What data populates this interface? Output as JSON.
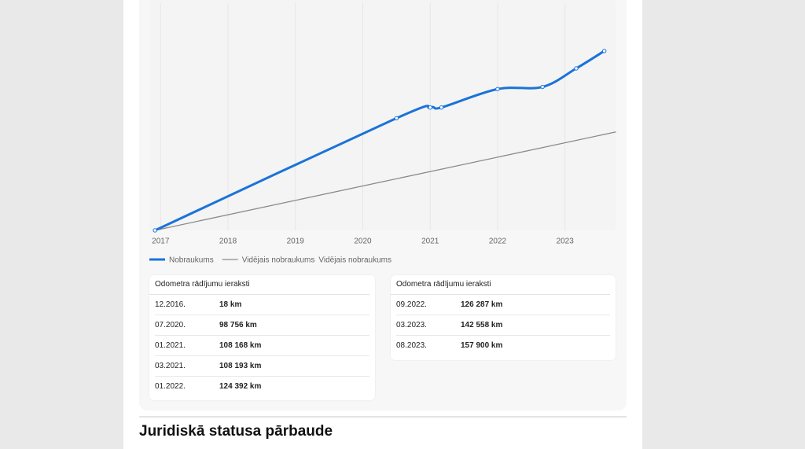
{
  "chart_data": {
    "type": "line",
    "xlim": [
      "2016-11",
      "2023-10"
    ],
    "ylim": [
      0,
      200000
    ],
    "xticks": [
      {
        "value": "2017-01",
        "label": "2017"
      },
      {
        "value": "2018-01",
        "label": "2018"
      },
      {
        "value": "2019-01",
        "label": "2019"
      },
      {
        "value": "2020-01",
        "label": "2020"
      },
      {
        "value": "2021-01",
        "label": "2021"
      },
      {
        "value": "2022-01",
        "label": "2022"
      },
      {
        "value": "2023-01",
        "label": "2023"
      }
    ],
    "grid": true,
    "series": [
      {
        "name": "Nobraukums",
        "color": "#1a73d9",
        "x": [
          "2016-12",
          "2020-07",
          "2021-01",
          "2021-03",
          "2022-01",
          "2022-09",
          "2023-03",
          "2023-08"
        ],
        "values": [
          18,
          98756,
          108168,
          108193,
          124392,
          126287,
          142558,
          157900
        ]
      },
      {
        "name": "Vidējais nobraukums",
        "color": "#8a8a8a",
        "x": [
          "2016-12",
          "2023-10"
        ],
        "values": [
          18,
          86600
        ]
      }
    ],
    "legend_extra_label": "Vidējais nobraukums"
  },
  "tables": [
    {
      "title": "Odometra rādījumu ieraksti",
      "rows": [
        [
          "12.2016.",
          "18 km"
        ],
        [
          "07.2020.",
          "98 756 km"
        ],
        [
          "01.2021.",
          "108 168 km"
        ],
        [
          "03.2021.",
          "108 193 km"
        ],
        [
          "01.2022.",
          "124 392 km"
        ]
      ]
    },
    {
      "title": "Odometra rādījumu ieraksti",
      "rows": [
        [
          "09.2022.",
          "126 287 km"
        ],
        [
          "03.2023.",
          "142 558 km"
        ],
        [
          "08.2023.",
          "157 900 km"
        ]
      ]
    }
  ],
  "section_title": "Juridiskā statusa pārbaude"
}
